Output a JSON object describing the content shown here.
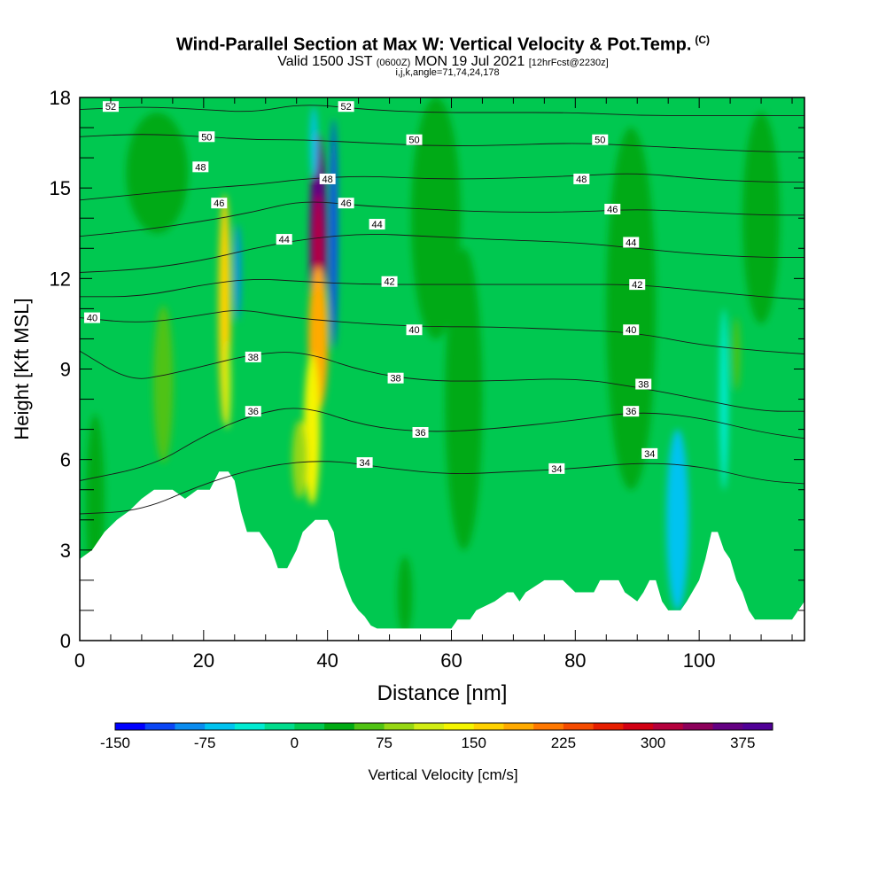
{
  "header": {
    "title": "Wind-Parallel Section at Max W: Vertical Velocity & Pot.Temp.",
    "title_tag": "(C)",
    "valid_prefix": "Valid 1500 JST",
    "valid_zulu": "(0600Z)",
    "valid_date": "MON 19 Jul 2021",
    "forecast": "[12hrFcst@2230z]",
    "indices": "i,j,k,angle=71,74,24,178"
  },
  "chart_data": {
    "type": "heatmap",
    "xlabel": "Distance [nm]",
    "ylabel": "Height [Kft MSL]",
    "xlim": [
      0,
      117
    ],
    "ylim": [
      0,
      18
    ],
    "x_ticks": [
      0,
      20,
      40,
      60,
      80,
      100
    ],
    "y_ticks": [
      0,
      3,
      6,
      9,
      12,
      15,
      18
    ],
    "colorbar": {
      "label": "Vertical Velocity [cm/s]",
      "min": -150,
      "max": 400,
      "step": 25,
      "tick_values": [
        -150,
        -75,
        0,
        75,
        150,
        225,
        300,
        375
      ],
      "colors": [
        "#0000ff",
        "#0a46f5",
        "#0a8cf0",
        "#00c3f0",
        "#00ebd2",
        "#00dc8c",
        "#00c850",
        "#00aa14",
        "#50c314",
        "#96d714",
        "#d2ed14",
        "#f5f500",
        "#ffd200",
        "#ffaa00",
        "#ff7800",
        "#f54b00",
        "#e61e00",
        "#d20014",
        "#b4003c",
        "#8c005a",
        "#640082",
        "#500096"
      ]
    },
    "terrain_kft": [
      [
        0,
        2.7
      ],
      [
        2,
        3.0
      ],
      [
        4,
        3.6
      ],
      [
        6,
        4.0
      ],
      [
        8,
        4.3
      ],
      [
        10,
        4.7
      ],
      [
        12,
        5.0
      ],
      [
        15,
        5.0
      ],
      [
        17,
        4.7
      ],
      [
        19,
        5.0
      ],
      [
        21,
        5.0
      ],
      [
        22.5,
        5.6
      ],
      [
        24,
        5.6
      ],
      [
        25,
        5.3
      ],
      [
        26,
        4.3
      ],
      [
        27,
        3.6
      ],
      [
        29,
        3.6
      ],
      [
        31,
        3.0
      ],
      [
        32,
        2.4
      ],
      [
        33.5,
        2.4
      ],
      [
        35,
        3.0
      ],
      [
        36,
        3.6
      ],
      [
        38,
        4.0
      ],
      [
        40,
        4.0
      ],
      [
        41,
        3.6
      ],
      [
        42,
        2.4
      ],
      [
        43,
        1.8
      ],
      [
        44,
        1.3
      ],
      [
        45,
        1.0
      ],
      [
        46,
        0.8
      ],
      [
        47,
        0.5
      ],
      [
        48,
        0.4
      ],
      [
        53,
        0.4
      ],
      [
        59,
        0.4
      ],
      [
        60,
        0.4
      ],
      [
        61,
        0.7
      ],
      [
        63,
        0.7
      ],
      [
        64,
        1.0
      ],
      [
        67,
        1.3
      ],
      [
        69,
        1.6
      ],
      [
        70,
        1.6
      ],
      [
        71,
        1.3
      ],
      [
        72,
        1.6
      ],
      [
        75,
        2.0
      ],
      [
        78,
        2.0
      ],
      [
        80,
        1.6
      ],
      [
        83,
        1.6
      ],
      [
        84,
        2.0
      ],
      [
        87,
        2.0
      ],
      [
        88,
        1.6
      ],
      [
        90,
        1.3
      ],
      [
        91,
        1.6
      ],
      [
        92,
        2.0
      ],
      [
        93,
        2.0
      ],
      [
        94,
        1.3
      ],
      [
        95,
        1.0
      ],
      [
        97,
        1.0
      ],
      [
        98,
        1.3
      ],
      [
        100,
        2.0
      ],
      [
        101,
        2.7
      ],
      [
        102,
        3.6
      ],
      [
        103,
        3.6
      ],
      [
        104,
        3.0
      ],
      [
        105,
        2.7
      ],
      [
        106,
        2.0
      ],
      [
        107,
        1.6
      ],
      [
        108,
        1.0
      ],
      [
        109,
        0.7
      ],
      [
        115,
        0.7
      ],
      [
        116,
        1.0
      ],
      [
        117,
        1.3
      ]
    ],
    "isentropes": [
      {
        "label": "34",
        "points": [
          [
            0,
            4.2
          ],
          [
            10,
            4.3
          ],
          [
            20,
            5.2
          ],
          [
            30,
            5.8
          ],
          [
            40,
            6.0
          ],
          [
            50,
            5.7
          ],
          [
            60,
            5.5
          ],
          [
            70,
            5.6
          ],
          [
            80,
            5.7
          ],
          [
            90,
            5.9
          ],
          [
            100,
            5.8
          ],
          [
            110,
            5.3
          ],
          [
            117,
            5.2
          ]
        ],
        "labels": [
          [
            46,
            5.9
          ],
          [
            77,
            5.7
          ],
          [
            92,
            6.2
          ]
        ]
      },
      {
        "label": "36",
        "points": [
          [
            0,
            5.3
          ],
          [
            12,
            5.8
          ],
          [
            20,
            6.8
          ],
          [
            28,
            7.5
          ],
          [
            36,
            7.8
          ],
          [
            46,
            7.1
          ],
          [
            56,
            6.9
          ],
          [
            66,
            7.0
          ],
          [
            80,
            7.3
          ],
          [
            90,
            7.6
          ],
          [
            100,
            7.4
          ],
          [
            110,
            6.9
          ],
          [
            117,
            6.7
          ]
        ],
        "labels": [
          [
            28,
            7.6
          ],
          [
            55,
            6.9
          ],
          [
            89,
            7.6
          ]
        ]
      },
      {
        "label": "38",
        "points": [
          [
            0,
            9.6
          ],
          [
            8,
            8.6
          ],
          [
            14,
            8.8
          ],
          [
            20,
            9.1
          ],
          [
            28,
            9.5
          ],
          [
            36,
            9.6
          ],
          [
            46,
            8.9
          ],
          [
            56,
            8.6
          ],
          [
            66,
            8.6
          ],
          [
            80,
            8.7
          ],
          [
            90,
            8.4
          ],
          [
            100,
            8.0
          ],
          [
            110,
            7.6
          ],
          [
            117,
            7.6
          ]
        ],
        "labels": [
          [
            28,
            9.4
          ],
          [
            51,
            8.7
          ],
          [
            91,
            8.5
          ]
        ]
      },
      {
        "label": "40",
        "points": [
          [
            0,
            10.7
          ],
          [
            10,
            10.5
          ],
          [
            20,
            10.8
          ],
          [
            26,
            11.0
          ],
          [
            34,
            10.7
          ],
          [
            46,
            10.5
          ],
          [
            56,
            10.4
          ],
          [
            66,
            10.4
          ],
          [
            80,
            10.3
          ],
          [
            90,
            10.2
          ],
          [
            100,
            9.8
          ],
          [
            110,
            9.6
          ],
          [
            117,
            9.5
          ]
        ],
        "labels": [
          [
            2,
            10.7
          ],
          [
            54,
            10.3
          ],
          [
            89,
            10.3
          ]
        ]
      },
      {
        "label": "42",
        "points": [
          [
            0,
            11.4
          ],
          [
            10,
            11.4
          ],
          [
            20,
            11.8
          ],
          [
            28,
            12.0
          ],
          [
            36,
            11.9
          ],
          [
            46,
            11.8
          ],
          [
            56,
            11.8
          ],
          [
            66,
            11.8
          ],
          [
            80,
            11.8
          ],
          [
            90,
            11.8
          ],
          [
            100,
            11.6
          ],
          [
            110,
            11.4
          ],
          [
            117,
            11.3
          ]
        ],
        "labels": [
          [
            50,
            11.9
          ],
          [
            90,
            11.8
          ]
        ]
      },
      {
        "label": "44",
        "points": [
          [
            0,
            12.2
          ],
          [
            10,
            12.3
          ],
          [
            20,
            12.6
          ],
          [
            28,
            13.0
          ],
          [
            36,
            13.3
          ],
          [
            46,
            13.5
          ],
          [
            56,
            13.4
          ],
          [
            66,
            13.3
          ],
          [
            80,
            13.2
          ],
          [
            90,
            13.0
          ],
          [
            100,
            12.8
          ],
          [
            110,
            12.7
          ],
          [
            117,
            12.7
          ]
        ],
        "labels": [
          [
            33,
            13.3
          ],
          [
            48,
            13.8
          ],
          [
            89,
            13.2
          ]
        ]
      },
      {
        "label": "46",
        "points": [
          [
            0,
            13.4
          ],
          [
            10,
            13.6
          ],
          [
            20,
            13.9
          ],
          [
            28,
            14.2
          ],
          [
            36,
            14.6
          ],
          [
            46,
            14.4
          ],
          [
            56,
            14.3
          ],
          [
            66,
            14.2
          ],
          [
            80,
            14.2
          ],
          [
            90,
            14.3
          ],
          [
            100,
            14.2
          ],
          [
            110,
            14.1
          ],
          [
            117,
            14.1
          ]
        ],
        "labels": [
          [
            22.5,
            14.5
          ],
          [
            43,
            14.5
          ],
          [
            86,
            14.3
          ]
        ]
      },
      {
        "label": "48",
        "points": [
          [
            0,
            14.6
          ],
          [
            10,
            14.8
          ],
          [
            20,
            15.0
          ],
          [
            28,
            15.1
          ],
          [
            36,
            15.3
          ],
          [
            46,
            15.4
          ],
          [
            56,
            15.3
          ],
          [
            66,
            15.3
          ],
          [
            80,
            15.4
          ],
          [
            90,
            15.5
          ],
          [
            100,
            15.3
          ],
          [
            110,
            15.2
          ],
          [
            117,
            15.2
          ]
        ],
        "labels": [
          [
            19.5,
            15.7
          ],
          [
            40,
            15.3
          ],
          [
            81,
            15.3
          ]
        ]
      },
      {
        "label": "50",
        "points": [
          [
            0,
            16.7
          ],
          [
            10,
            16.8
          ],
          [
            20,
            16.7
          ],
          [
            28,
            16.6
          ],
          [
            36,
            16.6
          ],
          [
            46,
            16.5
          ],
          [
            56,
            16.4
          ],
          [
            66,
            16.4
          ],
          [
            80,
            16.5
          ],
          [
            90,
            16.4
          ],
          [
            100,
            16.3
          ],
          [
            110,
            16.2
          ],
          [
            117,
            16.2
          ]
        ],
        "labels": [
          [
            20.5,
            16.7
          ],
          [
            54,
            16.6
          ],
          [
            84,
            16.6
          ]
        ]
      },
      {
        "label": "52",
        "points": [
          [
            0,
            17.6
          ],
          [
            10,
            17.7
          ],
          [
            20,
            17.6
          ],
          [
            28,
            17.5
          ],
          [
            36,
            17.8
          ],
          [
            46,
            17.6
          ],
          [
            56,
            17.5
          ],
          [
            66,
            17.5
          ],
          [
            80,
            17.5
          ],
          [
            90,
            17.4
          ],
          [
            100,
            17.4
          ],
          [
            110,
            17.4
          ],
          [
            117,
            17.4
          ]
        ],
        "labels": [
          [
            5,
            17.7
          ],
          [
            43,
            17.7
          ]
        ]
      }
    ],
    "w_features": [
      {
        "x": 38.5,
        "y": 13.0,
        "rx": 1.4,
        "ry": 3.8,
        "w": 350
      },
      {
        "x": 38.5,
        "y": 12.6,
        "rx": 0.9,
        "ry": 2.2,
        "w": 300
      },
      {
        "x": 38.5,
        "y": 10.0,
        "rx": 1.6,
        "ry": 2.4,
        "w": 180
      },
      {
        "x": 37.5,
        "y": 7.0,
        "rx": 1.3,
        "ry": 2.5,
        "w": 140
      },
      {
        "x": 35.5,
        "y": 6.0,
        "rx": 1.2,
        "ry": 1.3,
        "w": 90
      },
      {
        "x": 41.0,
        "y": 13.5,
        "rx": 0.6,
        "ry": 3.8,
        "w": -120
      },
      {
        "x": 37.8,
        "y": 16.5,
        "rx": 0.6,
        "ry": 1.2,
        "w": -60
      },
      {
        "x": 23.6,
        "y": 11.5,
        "rx": 0.7,
        "ry": 2.6,
        "w": 220
      },
      {
        "x": 23.4,
        "y": 11.0,
        "rx": 1.0,
        "ry": 3.8,
        "w": 150
      },
      {
        "x": 25.5,
        "y": 12.2,
        "rx": 0.5,
        "ry": 1.6,
        "w": -90
      },
      {
        "x": 23.8,
        "y": 8.5,
        "rx": 0.6,
        "ry": 1.5,
        "w": 100
      },
      {
        "x": 13.5,
        "y": 8.5,
        "rx": 1.6,
        "ry": 2.6,
        "w": 60
      },
      {
        "x": 12.5,
        "y": 15.5,
        "rx": 5.0,
        "ry": 2.0,
        "w": 30
      },
      {
        "x": 57.5,
        "y": 14.0,
        "rx": 4.0,
        "ry": 4.0,
        "w": 30
      },
      {
        "x": 62.0,
        "y": 8.0,
        "rx": 3.0,
        "ry": 5.0,
        "w": 25
      },
      {
        "x": 89.0,
        "y": 11.0,
        "rx": 4.0,
        "ry": 6.0,
        "w": 25
      },
      {
        "x": 96.5,
        "y": 4.0,
        "rx": 1.8,
        "ry": 3.0,
        "w": -60
      },
      {
        "x": 104.0,
        "y": 8.0,
        "rx": 0.7,
        "ry": 3.0,
        "w": -50
      },
      {
        "x": 106.0,
        "y": 9.5,
        "rx": 0.6,
        "ry": 1.2,
        "w": 50
      },
      {
        "x": 52.5,
        "y": 1.5,
        "rx": 1.2,
        "ry": 1.3,
        "w": 30
      },
      {
        "x": 2.5,
        "y": 4.5,
        "rx": 1.5,
        "ry": 3.0,
        "w": 30
      },
      {
        "x": 110.0,
        "y": 14.0,
        "rx": 3.0,
        "ry": 3.5,
        "w": 30
      }
    ]
  }
}
